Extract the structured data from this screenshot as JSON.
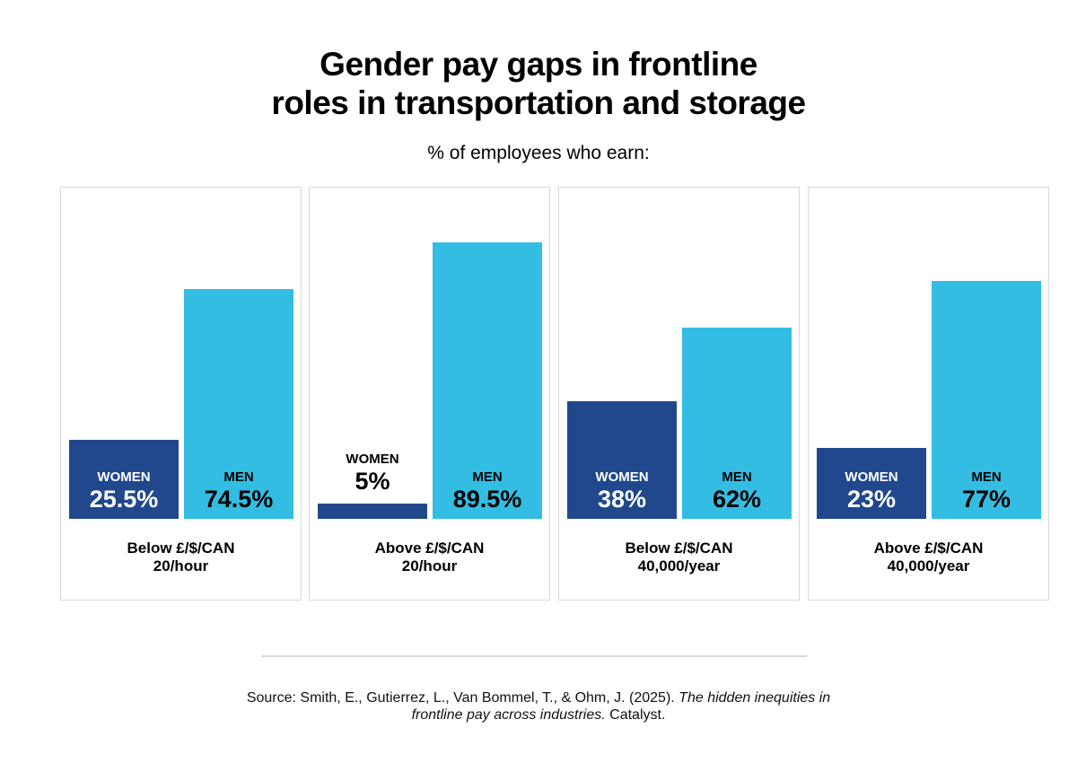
{
  "title_line1": "Gender pay gaps in frontline",
  "title_line2": "roles in transportation and storage",
  "subtitle": "% of employees who earn:",
  "source": {
    "prefix": "Source: Smith, E., Gutierrez, L., Van Bommel, T., & Ohm, J. (2025). ",
    "italic_1": "The hidden inequities in",
    "italic_2": "frontline pay across industries.",
    "suffix": " Catalyst."
  },
  "colors": {
    "women": "#21488c",
    "men": "#33bde2"
  },
  "chart_data": {
    "type": "bar",
    "title": "Gender pay gaps in frontline roles in transportation and storage",
    "subtitle": "% of employees who earn:",
    "xlabel": "",
    "ylabel": "% of employees",
    "ylim": [
      0,
      100
    ],
    "grid": false,
    "legend": "none (series labels drawn inside bars)",
    "categories": [
      [
        "Below £/$/CAN",
        "20/hour"
      ],
      [
        "Above £/$/CAN",
        "20/hour"
      ],
      [
        "Below £/$/CAN",
        "40,000/year"
      ],
      [
        "Above £/$/CAN",
        "40,000/year"
      ]
    ],
    "series": [
      {
        "name": "WOMEN",
        "values": [
          25.5,
          5,
          38,
          23
        ],
        "labels": [
          "25.5%",
          "5%",
          "38%",
          "23%"
        ]
      },
      {
        "name": "MEN",
        "values": [
          74.5,
          89.5,
          62,
          77
        ],
        "labels": [
          "74.5%",
          "89.5%",
          "62%",
          "77%"
        ]
      }
    ]
  }
}
